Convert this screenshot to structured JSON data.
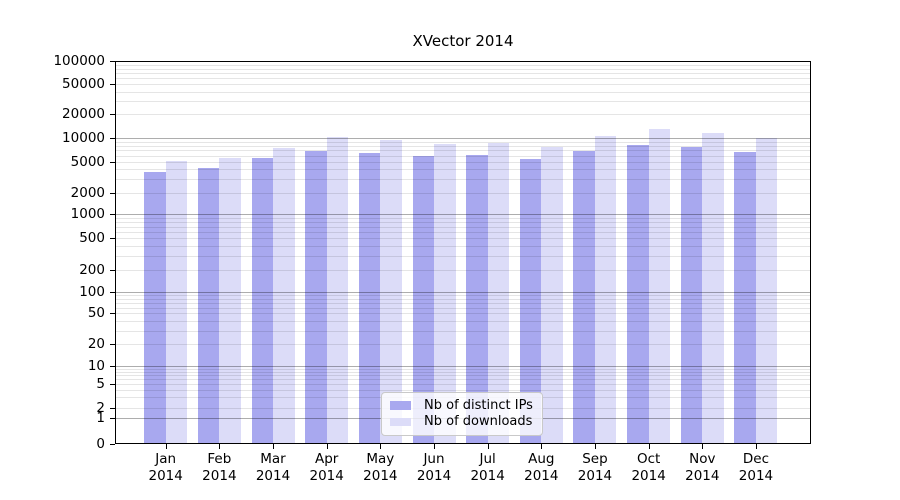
{
  "chart_data": {
    "type": "bar",
    "title": "XVector 2014",
    "categories": [
      "Jan",
      "Feb",
      "Mar",
      "Apr",
      "May",
      "Jun",
      "Jul",
      "Aug",
      "Sep",
      "Oct",
      "Nov",
      "Dec"
    ],
    "xtick_second_line": "2014",
    "series": [
      {
        "name": "Nb of distinct IPs",
        "color": "#a8a8ef",
        "values": [
          3700,
          4100,
          5500,
          6800,
          6500,
          5900,
          6050,
          5350,
          6800,
          8300,
          7700,
          6700
        ]
      },
      {
        "name": "Nb of downloads",
        "color": "#dcdcf8",
        "values": [
          5150,
          5650,
          7400,
          10500,
          9600,
          8550,
          8750,
          7800,
          10600,
          13100,
          11700,
          10200
        ]
      }
    ],
    "yaxis": {
      "scale": "symlog",
      "ylim": [
        0,
        100000
      ],
      "tick_labels": [
        "100000",
        "50000",
        "20000",
        "10000",
        "5000",
        "2000",
        "1000",
        "500",
        "200",
        "100",
        "50",
        "20",
        "10",
        "5",
        "2",
        "1",
        "0"
      ]
    },
    "grid": true,
    "legend_position": "lower center"
  },
  "colors": {
    "grid_major": "#b0b0b0",
    "grid_minor": "#e6e6e6",
    "spine": "#000000"
  }
}
